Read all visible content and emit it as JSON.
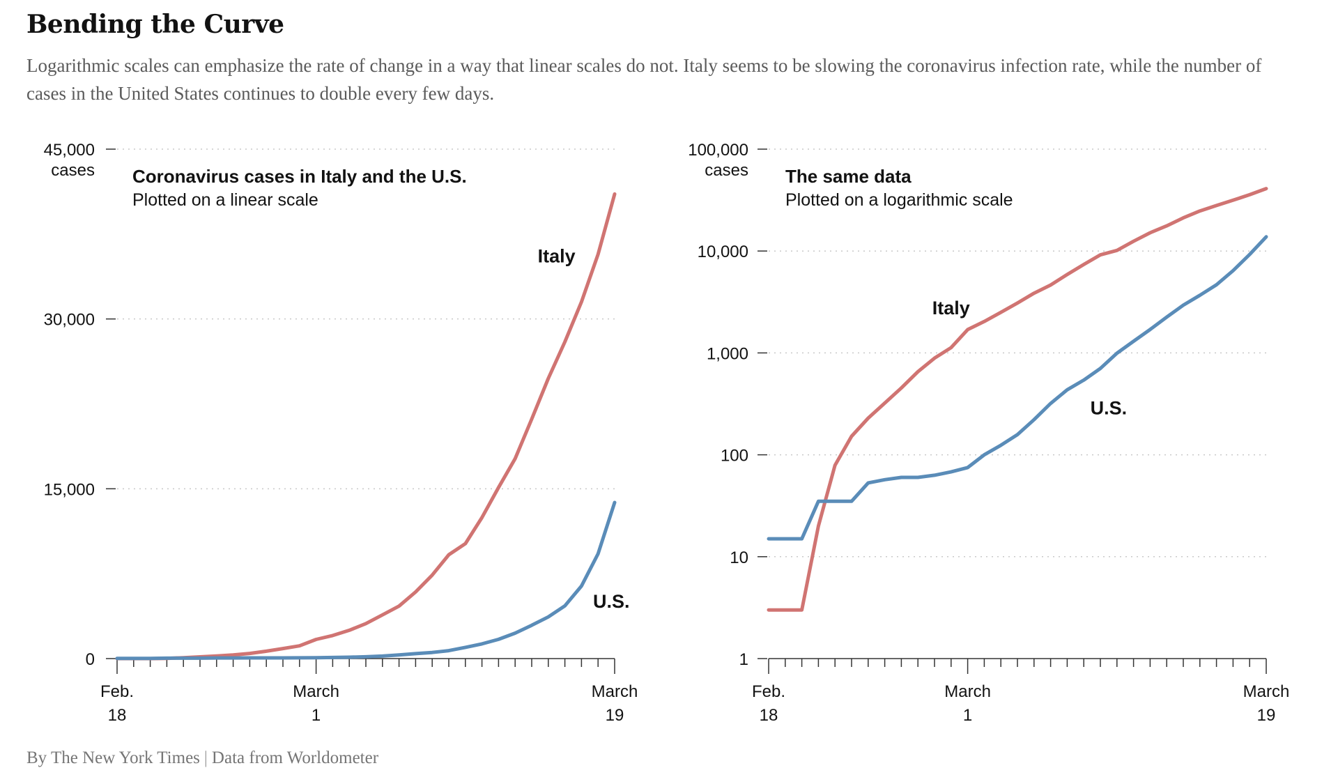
{
  "headline": "Bending the Curve",
  "dek": "Logarithmic scales can emphasize the rate of change in a way that linear scales do not. Italy seems to be slowing the coronavirus infection rate, while the number of cases in the United States continues to double every few days.",
  "credit": {
    "byline": "By The New York Times",
    "separator": "|",
    "source": "Data from Worldometer"
  },
  "colors": {
    "italy": "#d07472",
    "us": "#5a8cb8",
    "grid": "#c9c9c9",
    "axis": "#333333"
  },
  "chart_data": [
    {
      "type": "line",
      "title": "Coronavirus cases in Italy and the U.S.",
      "subtitle": "Plotted on a linear scale",
      "y_scale": "linear",
      "ylabel": "cases",
      "ylim": [
        0,
        45000
      ],
      "yticks": [
        0,
        15000,
        30000,
        45000
      ],
      "ytick_labels": [
        "0",
        "15,000",
        "30,000",
        "45,000"
      ],
      "grid": true,
      "xticks": [
        {
          "day": 0,
          "label": [
            "Feb.",
            "18"
          ]
        },
        {
          "day": 12,
          "label": [
            "March",
            "1"
          ]
        },
        {
          "day": 30,
          "label": [
            "March",
            "19"
          ]
        }
      ],
      "x_day_zero": "Feb. 18",
      "series": [
        {
          "name": "Italy",
          "color_key": "italy",
          "label_day": 26.5,
          "label_value": 35000,
          "values": [
            3,
            3,
            3,
            20,
            79,
            152,
            229,
            322,
            453,
            655,
            888,
            1128,
            1694,
            2036,
            2502,
            3089,
            3858,
            4636,
            5883,
            7375,
            9172,
            10149,
            12462,
            15113,
            17660,
            21157,
            24747,
            27980,
            31506,
            35713,
            41035
          ]
        },
        {
          "name": "U.S.",
          "color_key": "us",
          "label_day": 29.8,
          "label_value": 4500,
          "values": [
            15,
            15,
            15,
            35,
            35,
            35,
            53,
            57,
            60,
            60,
            63,
            68,
            75,
            100,
            124,
            158,
            221,
            319,
            435,
            541,
            704,
            994,
            1301,
            1697,
            2247,
            2943,
            3680,
            4663,
            6411,
            9259,
            13789
          ]
        }
      ]
    },
    {
      "type": "line",
      "title": "The same data",
      "subtitle": "Plotted on a logarithmic scale",
      "y_scale": "log",
      "ylabel": "cases",
      "ylim": [
        1,
        100000
      ],
      "yticks": [
        1,
        10,
        100,
        1000,
        10000,
        100000
      ],
      "ytick_labels": [
        "1",
        "10",
        "100",
        "1,000",
        "10,000",
        "100,000"
      ],
      "grid": true,
      "xticks": [
        {
          "day": 0,
          "label": [
            "Feb.",
            "18"
          ]
        },
        {
          "day": 12,
          "label": [
            "March",
            "1"
          ]
        },
        {
          "day": 30,
          "label": [
            "March",
            "19"
          ]
        }
      ],
      "x_day_zero": "Feb. 18",
      "series": [
        {
          "name": "Italy",
          "color_key": "italy",
          "label_day": 11,
          "label_value": 2400,
          "values": [
            3,
            3,
            3,
            20,
            79,
            152,
            229,
            322,
            453,
            655,
            888,
            1128,
            1694,
            2036,
            2502,
            3089,
            3858,
            4636,
            5883,
            7375,
            9172,
            10149,
            12462,
            15113,
            17660,
            21157,
            24747,
            27980,
            31506,
            35713,
            41035
          ]
        },
        {
          "name": "U.S.",
          "color_key": "us",
          "label_day": 20.5,
          "label_value": 250,
          "values": [
            15,
            15,
            15,
            35,
            35,
            35,
            53,
            57,
            60,
            60,
            63,
            68,
            75,
            100,
            124,
            158,
            221,
            319,
            435,
            541,
            704,
            994,
            1301,
            1697,
            2247,
            2943,
            3680,
            4663,
            6411,
            9259,
            13789
          ]
        }
      ]
    }
  ]
}
